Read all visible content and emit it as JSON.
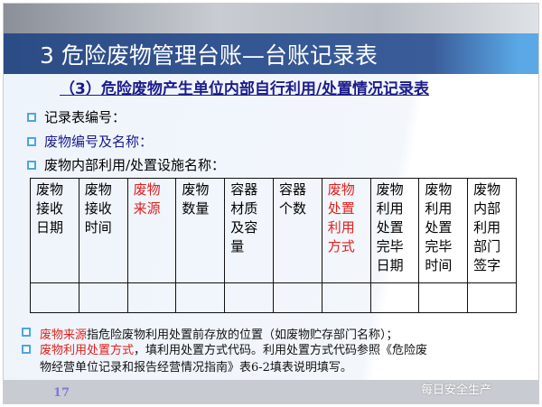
{
  "title": "3 危险废物管理台账—台账记录表",
  "subtitle": "（3）危险废物产生单位内部自行利用/处置情况记录表",
  "bullets": [
    {
      "text": "记录表编号：",
      "color": "#111111"
    },
    {
      "text": "废物编号及名称：",
      "color": "#1c1c8c"
    },
    {
      "text": "废物内部利用/处置设施名称：",
      "color": "#111111"
    }
  ],
  "table": {
    "headers": [
      {
        "text": "废物接收日期",
        "red": false
      },
      {
        "text": "废物接收时间",
        "red": false
      },
      {
        "text": "废物来源",
        "red": true
      },
      {
        "text": "废物数量",
        "red": false
      },
      {
        "text": "容器材质及容量",
        "red": false
      },
      {
        "text": "容器个数",
        "red": false
      },
      {
        "text": "废物处置利用方式",
        "red": true
      },
      {
        "text": "废物利用处置完毕日期",
        "red": false
      },
      {
        "text": "废物利用处置完毕时间",
        "red": false
      },
      {
        "text": "废物内部利用部门签字",
        "red": false
      }
    ]
  },
  "notes": [
    {
      "highlight": "废物来源",
      "text": "指危险废物利用处置前存放的位置（如废物贮存部门名称）；"
    },
    {
      "highlight": "废物利用处置方式",
      "text": "，填利用处置方式代码。利用处置方式代码参照《危险废",
      "text2": "物经营单位记录和报告经营情况指南》表6-2填表说明填写。"
    }
  ],
  "page_number": "17",
  "watermark": "每日安全生产",
  "colors": {
    "title_bar": "#2c4c86",
    "subtitle": "#1c1c8c",
    "highlight": "#e0201c",
    "bullet": "#4aa6e6"
  }
}
